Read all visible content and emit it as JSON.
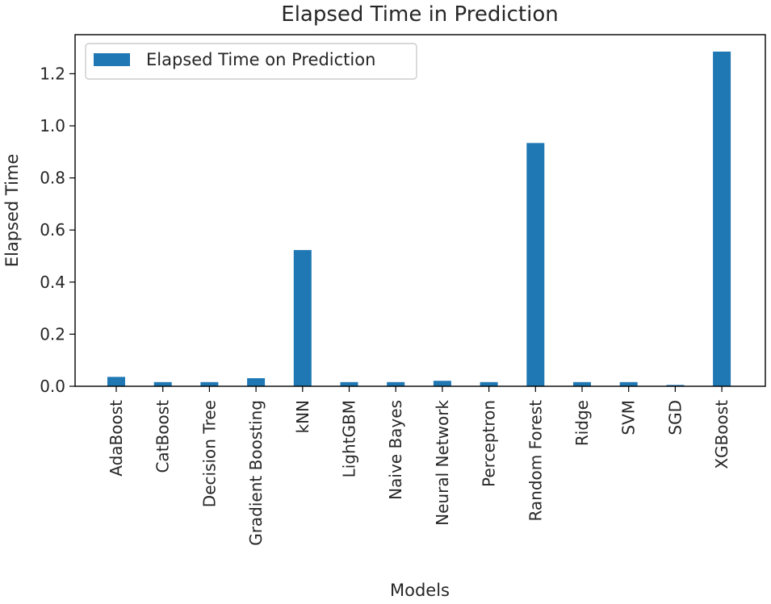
{
  "chart_data": {
    "type": "bar",
    "title": "Elapsed Time in Prediction",
    "xlabel": "Models",
    "ylabel": "Elapsed Time",
    "categories": [
      "AdaBoost",
      "CatBoost",
      "Decision Tree",
      "Gradient Boosting",
      "kNN",
      "LightGBM",
      "Naive Bayes",
      "Neural Network",
      "Perceptron",
      "Random Forest",
      "Ridge",
      "SVM",
      "SGD",
      "XGBoost"
    ],
    "series": [
      {
        "name": "Elapsed Time on Prediction",
        "values": [
          0.036,
          0.016,
          0.016,
          0.031,
          0.523,
          0.016,
          0.016,
          0.021,
          0.016,
          0.934,
          0.016,
          0.016,
          0.005,
          1.285
        ],
        "color": "#1f77b4"
      }
    ],
    "ylim": [
      0,
      1.35
    ],
    "yticks": [
      "0.0",
      "0.2",
      "0.4",
      "0.6",
      "0.8",
      "1.0",
      "1.2"
    ],
    "grid": false,
    "legend_position": "top-left"
  }
}
